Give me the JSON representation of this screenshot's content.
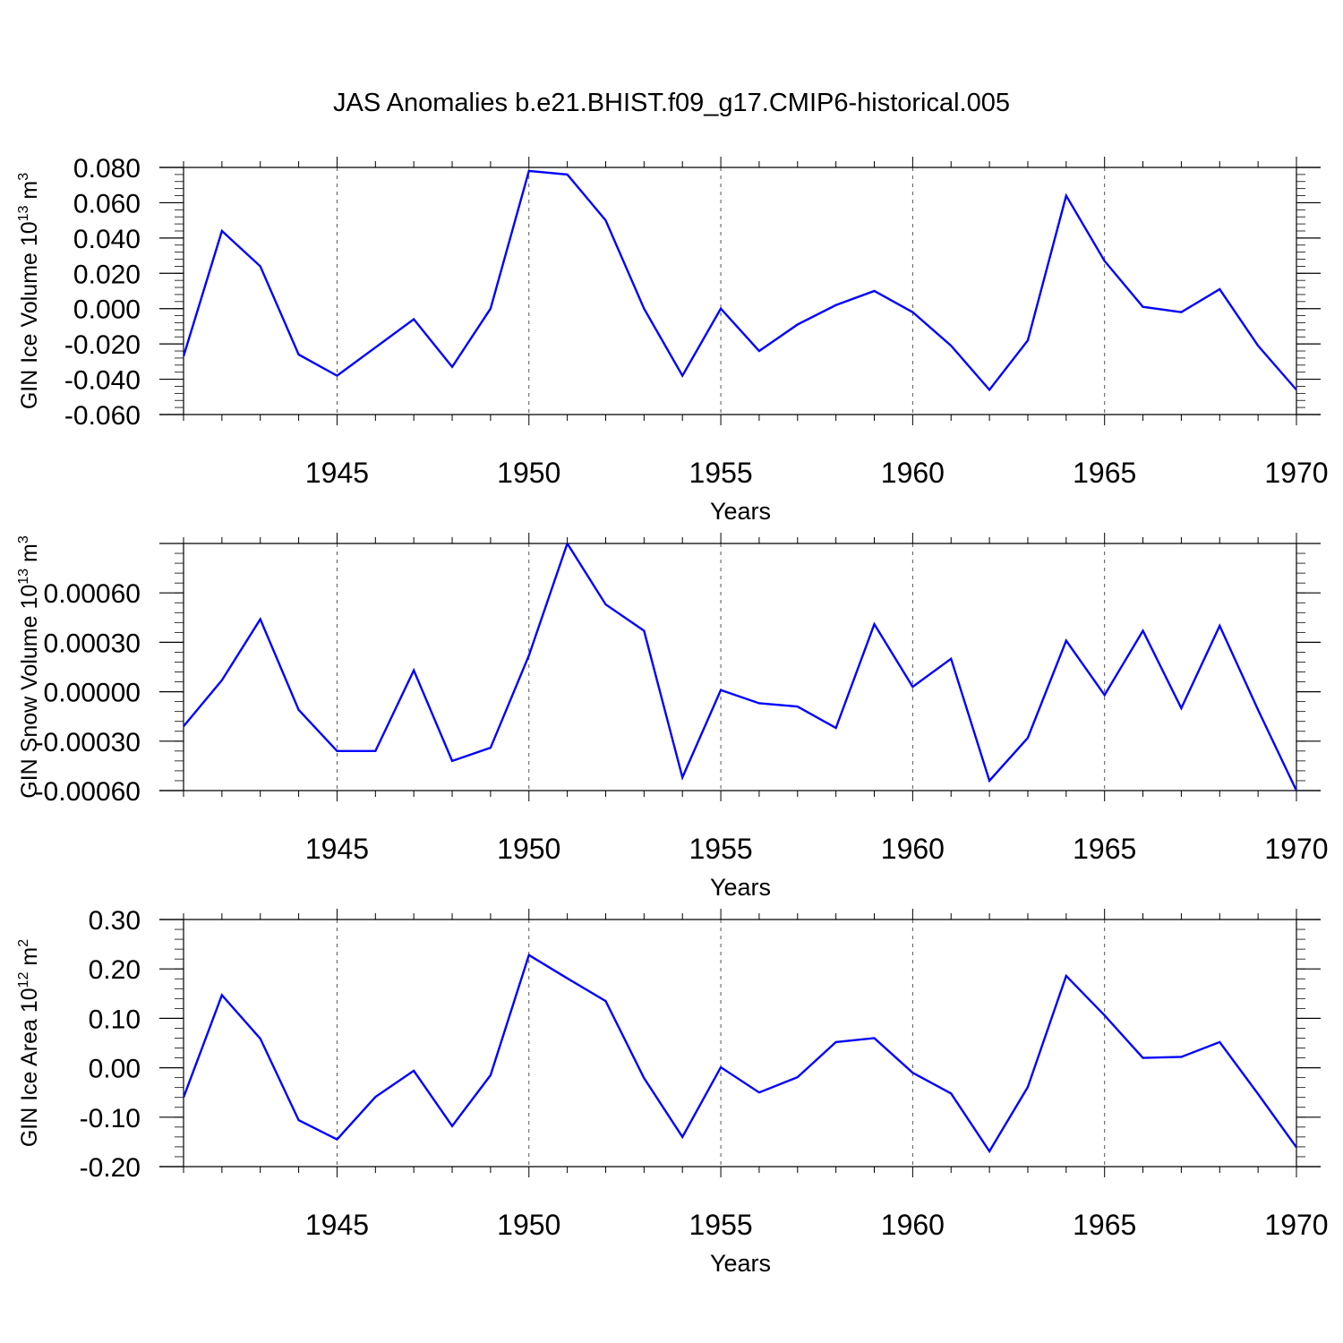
{
  "title": "JAS Anomalies b.e21.BHIST.f09_g17.CMIP6-historical.005",
  "colors": {
    "line": "#0000ff",
    "axis": "#000000",
    "grid": "#555555"
  },
  "chart_data": [
    {
      "type": "line",
      "xlabel": "Years",
      "ylabel": "GIN Ice Volume 10",
      "ylabel_exp": "13",
      "ylabel_unit": " m",
      "ylabel_unit_exp": "3",
      "xlim": [
        1941,
        1970
      ],
      "ylim": [
        -0.06,
        0.08
      ],
      "yticks": [
        {
          "value": 0.08,
          "label": "0.080"
        },
        {
          "value": 0.06,
          "label": "0.060"
        },
        {
          "value": 0.04,
          "label": "0.040"
        },
        {
          "value": 0.02,
          "label": "0.020"
        },
        {
          "value": 0.0,
          "label": "0.000"
        },
        {
          "value": -0.02,
          "label": "-0.020"
        },
        {
          "value": -0.04,
          "label": "-0.040"
        },
        {
          "value": -0.06,
          "label": "-0.060"
        }
      ],
      "xticks": [
        1945,
        1950,
        1955,
        1960,
        1965,
        1970
      ],
      "x": [
        1941,
        1942,
        1943,
        1944,
        1945,
        1946,
        1947,
        1948,
        1949,
        1950,
        1951,
        1952,
        1953,
        1954,
        1955,
        1956,
        1957,
        1958,
        1959,
        1960,
        1961,
        1962,
        1963,
        1964,
        1965,
        1966,
        1967,
        1968,
        1969,
        1970
      ],
      "values": [
        -0.027,
        0.044,
        0.024,
        -0.026,
        -0.038,
        -0.022,
        -0.006,
        -0.033,
        0.0,
        0.078,
        0.076,
        0.05,
        0.0,
        -0.038,
        0.0,
        -0.024,
        -0.009,
        0.002,
        0.01,
        -0.002,
        -0.021,
        -0.046,
        -0.018,
        0.064,
        0.027,
        0.001,
        -0.002,
        0.011,
        -0.021,
        -0.046
      ]
    },
    {
      "type": "line",
      "xlabel": "Years",
      "ylabel": "GIN Snow Volume 10",
      "ylabel_exp": "13",
      "ylabel_unit": " m",
      "ylabel_unit_exp": "3",
      "xlim": [
        1941,
        1970
      ],
      "ylim": [
        -0.0006,
        0.0009
      ],
      "yticks": [
        {
          "value": 0.0006,
          "label": "0.00060"
        },
        {
          "value": 0.0003,
          "label": "0.00030"
        },
        {
          "value": 0.0,
          "label": "0.00000"
        },
        {
          "value": -0.0003,
          "label": "-0.00030"
        },
        {
          "value": -0.0006,
          "label": "-0.00060"
        }
      ],
      "xticks": [
        1945,
        1950,
        1955,
        1960,
        1965,
        1970
      ],
      "x": [
        1941,
        1942,
        1943,
        1944,
        1945,
        1946,
        1947,
        1948,
        1949,
        1950,
        1951,
        1952,
        1953,
        1954,
        1955,
        1956,
        1957,
        1958,
        1959,
        1960,
        1961,
        1962,
        1963,
        1964,
        1965,
        1966,
        1967,
        1968,
        1969,
        1970
      ],
      "values": [
        -0.00021,
        7e-05,
        0.00044,
        -0.00011,
        -0.00036,
        -0.00036,
        0.00013,
        -0.00042,
        -0.00034,
        0.00022,
        0.0009,
        0.00053,
        0.00037,
        -0.00052,
        1e-05,
        -7e-05,
        -9e-05,
        -0.00022,
        0.00041,
        3e-05,
        0.0002,
        -0.00054,
        -0.00028,
        0.00031,
        -2e-05,
        0.00037,
        -0.0001,
        0.0004,
        -0.00011,
        -0.0006
      ]
    },
    {
      "type": "line",
      "xlabel": "Years",
      "ylabel": "GIN Ice Area 10",
      "ylabel_exp": "12",
      "ylabel_unit": " m",
      "ylabel_unit_exp": "2",
      "xlim": [
        1941,
        1970
      ],
      "ylim": [
        -0.2,
        0.3
      ],
      "yticks": [
        {
          "value": 0.3,
          "label": "0.30"
        },
        {
          "value": 0.2,
          "label": "0.20"
        },
        {
          "value": 0.1,
          "label": "0.10"
        },
        {
          "value": 0.0,
          "label": "0.00"
        },
        {
          "value": -0.1,
          "label": "-0.10"
        },
        {
          "value": -0.2,
          "label": "-0.20"
        }
      ],
      "xticks": [
        1945,
        1950,
        1955,
        1960,
        1965,
        1970
      ],
      "x": [
        1941,
        1942,
        1943,
        1944,
        1945,
        1946,
        1947,
        1948,
        1949,
        1950,
        1951,
        1952,
        1953,
        1954,
        1955,
        1956,
        1957,
        1958,
        1959,
        1960,
        1961,
        1962,
        1963,
        1964,
        1965,
        1966,
        1967,
        1968,
        1969,
        1970
      ],
      "values": [
        -0.06,
        0.147,
        0.059,
        -0.106,
        -0.145,
        -0.059,
        -0.006,
        -0.118,
        -0.015,
        0.228,
        0.181,
        0.135,
        -0.021,
        -0.14,
        0.001,
        -0.05,
        -0.019,
        0.052,
        0.06,
        -0.01,
        -0.052,
        -0.169,
        -0.039,
        0.186,
        0.106,
        0.02,
        0.022,
        0.052,
        -0.053,
        -0.161
      ]
    }
  ]
}
